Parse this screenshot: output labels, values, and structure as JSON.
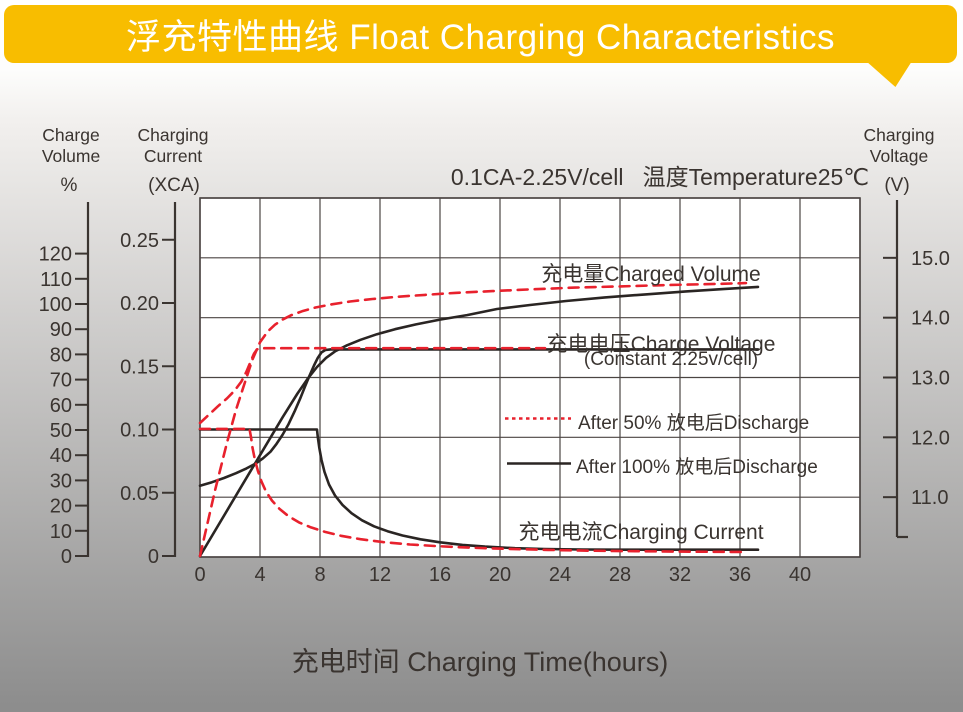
{
  "banner": {
    "title": "浮充特性曲线 Float Charging Characteristics",
    "bg_color": "#F8BD00",
    "text_color": "#FFFFFF"
  },
  "condition_label": "0.1CA-2.25V/cell   温度Temperature25℃",
  "axis_headers": {
    "volume": {
      "line1": "Charge",
      "line2": "Volume",
      "unit": "%"
    },
    "current": {
      "line1": "Charging",
      "line2": "Current",
      "unit": "(XCA)"
    },
    "voltage": {
      "line1": "Charging",
      "line2": "Voltage",
      "unit": "(V)"
    }
  },
  "curve_labels": {
    "charged_volume": "充电量Charged Volume",
    "charge_voltage": "充电电压Charge Voltage",
    "charge_voltage_sub": "(Constant 2.25v/cell)",
    "charging_current": "充电电流Charging Current"
  },
  "legend": [
    {
      "label": "After 50% 放电后Discharge",
      "color": "#E8212D",
      "style": "dotted"
    },
    {
      "label": "After 100% 放电后Discharge",
      "color": "#2A2523",
      "style": "solid"
    }
  ],
  "x_axis_title": "充电时间 Charging Time(hours)",
  "colors": {
    "red_curve": "#E8212D",
    "black_curve": "#2A2523",
    "grid": "#4B4543",
    "axis": "#3A3430",
    "plot_bg": "#FFFFFF"
  },
  "chart_data": {
    "type": "line",
    "title": "Float Charging Characteristics (0.1CA-2.25V/cell, 25C)",
    "x": {
      "label": "Charging Time",
      "unit": "hours",
      "range": [
        0,
        44
      ],
      "ticks": [
        "0",
        "4",
        "8",
        "12",
        "16",
        "20",
        "24",
        "28",
        "32",
        "36",
        "40"
      ]
    },
    "axes": {
      "volume": {
        "label": "Charge Volume",
        "unit": "%",
        "range_at_plot": [
          0,
          142
        ],
        "ticks": [
          "0",
          "10",
          "20",
          "30",
          "40",
          "50",
          "60",
          "70",
          "80",
          "90",
          "100",
          "110",
          "120"
        ]
      },
      "current": {
        "label": "Charging Current",
        "unit": "XCA",
        "range_at_plot": [
          0,
          0.283
        ],
        "ticks": [
          "0",
          "0.05",
          "0.10",
          "0.15",
          "0.20",
          "0.25"
        ]
      },
      "voltage": {
        "label": "Charging Voltage",
        "unit": "V",
        "range_at_plot": [
          10,
          16
        ],
        "ticks": [
          "11.0",
          "12.0",
          "13.0",
          "14.0",
          "15.0"
        ]
      }
    },
    "grid": true,
    "legend_position": "center-right",
    "series": [
      {
        "name": "charged_volume_after_100pct_discharge",
        "axis": "volume",
        "color": "black",
        "style": "solid",
        "points": [
          [
            0,
            0
          ],
          [
            2,
            20
          ],
          [
            4,
            40
          ],
          [
            5.5,
            55
          ],
          [
            6.5,
            64.5
          ],
          [
            7.2,
            70.5
          ],
          [
            7.8,
            75
          ],
          [
            8.4,
            78.6
          ],
          [
            9,
            81.2
          ],
          [
            9.8,
            83.6
          ],
          [
            10.7,
            85.8
          ],
          [
            11.8,
            88
          ],
          [
            13,
            90
          ],
          [
            14.4,
            91.9
          ],
          [
            16,
            93.8
          ],
          [
            17.8,
            95.6
          ],
          [
            19.8,
            98
          ],
          [
            22,
            99.6
          ],
          [
            24.4,
            101.2
          ],
          [
            27,
            102.6
          ],
          [
            29.7,
            103.8
          ],
          [
            32.4,
            105
          ],
          [
            35,
            106
          ],
          [
            37.2,
            106.8
          ]
        ]
      },
      {
        "name": "charge_voltage_after_100pct_discharge",
        "axis": "voltage",
        "color": "black",
        "style": "solid",
        "points": [
          [
            0,
            11.19
          ],
          [
            0.8,
            11.25
          ],
          [
            1.6,
            11.32
          ],
          [
            2.4,
            11.4
          ],
          [
            3.1,
            11.48
          ],
          [
            3.7,
            11.56
          ],
          [
            4.2,
            11.65
          ],
          [
            4.7,
            11.76
          ],
          [
            5.1,
            11.89
          ],
          [
            5.5,
            12.04
          ],
          [
            5.9,
            12.22
          ],
          [
            6.3,
            12.43
          ],
          [
            6.7,
            12.66
          ],
          [
            7,
            12.85
          ],
          [
            7.3,
            13.03
          ],
          [
            7.6,
            13.2
          ],
          [
            7.85,
            13.33
          ],
          [
            8.1,
            13.42
          ],
          [
            8.35,
            13.46
          ],
          [
            8.7,
            13.47
          ],
          [
            20,
            13.47
          ],
          [
            37.2,
            13.47
          ]
        ]
      },
      {
        "name": "charging_current_after_100pct_discharge",
        "axis": "current",
        "color": "black",
        "style": "solid",
        "points": [
          [
            0,
            0.1
          ],
          [
            4,
            0.1
          ],
          [
            7.8,
            0.1
          ],
          [
            7.85,
            0.094
          ],
          [
            7.95,
            0.0855
          ],
          [
            8.1,
            0.076
          ],
          [
            8.3,
            0.0665
          ],
          [
            8.6,
            0.0565
          ],
          [
            9,
            0.0478
          ],
          [
            9.5,
            0.0404
          ],
          [
            10.1,
            0.0338
          ],
          [
            10.8,
            0.0282
          ],
          [
            11.6,
            0.0235
          ],
          [
            12.5,
            0.0196
          ],
          [
            13.5,
            0.0162
          ],
          [
            14.7,
            0.0132
          ],
          [
            16,
            0.0108
          ],
          [
            17.5,
            0.0088
          ],
          [
            19,
            0.0074
          ],
          [
            21,
            0.0062
          ],
          [
            23,
            0.0055
          ],
          [
            25.5,
            0.0051
          ],
          [
            28,
            0.005
          ],
          [
            37.2,
            0.005
          ]
        ]
      },
      {
        "name": "charged_volume_after_50pct_discharge",
        "axis": "volume",
        "color": "red",
        "style": "dashed",
        "points": [
          [
            0,
            0
          ],
          [
            1,
            26
          ],
          [
            1.8,
            45
          ],
          [
            2.4,
            58
          ],
          [
            3,
            69
          ],
          [
            3.5,
            78
          ],
          [
            4,
            84.8
          ],
          [
            4.5,
            89
          ],
          [
            5,
            91.8
          ],
          [
            5.5,
            93.8
          ],
          [
            6.1,
            95.6
          ],
          [
            6.8,
            97.1
          ],
          [
            7.7,
            98.6
          ],
          [
            8.8,
            99.9
          ],
          [
            10,
            101
          ],
          [
            11.5,
            102
          ],
          [
            13.2,
            102.9
          ],
          [
            15,
            103.6
          ],
          [
            17,
            104.4
          ],
          [
            19.5,
            105.1
          ],
          [
            22,
            105.8
          ],
          [
            25,
            106.5
          ],
          [
            28,
            107
          ],
          [
            31,
            107.5
          ],
          [
            34,
            107.9
          ],
          [
            36.4,
            108.3
          ]
        ]
      },
      {
        "name": "charge_voltage_after_50pct_discharge",
        "axis": "voltage",
        "color": "red",
        "style": "dashed",
        "points": [
          [
            0,
            12.24
          ],
          [
            0.6,
            12.38
          ],
          [
            1.2,
            12.52
          ],
          [
            1.8,
            12.65
          ],
          [
            2.3,
            12.78
          ],
          [
            2.75,
            12.93
          ],
          [
            3.1,
            13.1
          ],
          [
            3.4,
            13.28
          ],
          [
            3.6,
            13.4
          ],
          [
            3.8,
            13.47
          ],
          [
            4.05,
            13.49
          ],
          [
            12,
            13.49
          ],
          [
            23,
            13.49
          ]
        ]
      },
      {
        "name": "charging_current_after_50pct_discharge",
        "axis": "current",
        "color": "red",
        "style": "dashed",
        "points": [
          [
            0,
            0.1005
          ],
          [
            1.6,
            0.1005
          ],
          [
            3.3,
            0.1005
          ],
          [
            3.4,
            0.094
          ],
          [
            3.5,
            0.0855
          ],
          [
            3.65,
            0.0765
          ],
          [
            3.85,
            0.0675
          ],
          [
            4.1,
            0.0588
          ],
          [
            4.4,
            0.051
          ],
          [
            4.8,
            0.0438
          ],
          [
            5.3,
            0.0372
          ],
          [
            5.9,
            0.0315
          ],
          [
            6.6,
            0.0266
          ],
          [
            7.4,
            0.0226
          ],
          [
            8.3,
            0.0192
          ],
          [
            9.4,
            0.016
          ],
          [
            10.7,
            0.0133
          ],
          [
            12.2,
            0.011
          ],
          [
            14,
            0.0091
          ],
          [
            16,
            0.0077
          ],
          [
            18.2,
            0.0065
          ],
          [
            20.6,
            0.0056
          ],
          [
            23.2,
            0.0048
          ],
          [
            26,
            0.0042
          ],
          [
            29,
            0.0038
          ],
          [
            32,
            0.0035
          ],
          [
            36.5,
            0.0032
          ]
        ]
      }
    ]
  }
}
